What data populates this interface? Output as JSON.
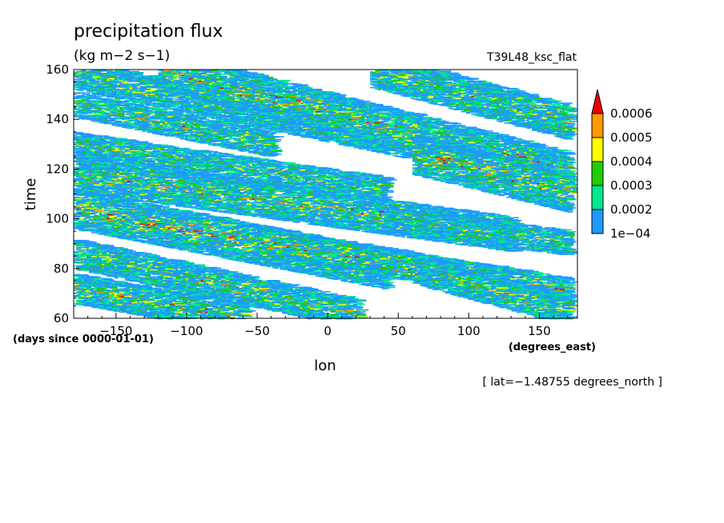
{
  "chart_data": {
    "type": "heatmap",
    "title": "precipitation flux",
    "units": "(kg m−2 s−1)",
    "run_label": "T39L48_ksc_flat",
    "xlabel": "lon",
    "xunits": "(degrees_east)",
    "ylabel": "time",
    "yunits": "(days since 0000-01-01)",
    "note": "[ lat=−1.48755 degrees_north ]",
    "xlim": [
      -180,
      177
    ],
    "ylim": [
      60,
      160
    ],
    "x_ticks": [
      -150,
      -100,
      -50,
      0,
      50,
      100,
      150
    ],
    "x_tick_labels": [
      "−150",
      "−100",
      "−50",
      "0",
      "50",
      "100",
      "150"
    ],
    "y_ticks": [
      60,
      80,
      100,
      120,
      140,
      160
    ],
    "y_tick_labels": [
      "60",
      "80",
      "100",
      "120",
      "140",
      "160"
    ],
    "grid": false,
    "legend_position": "right",
    "levels": [
      0.0001,
      0.0002,
      0.0003,
      0.0004,
      0.0005,
      0.0006
    ],
    "level_labels": [
      "1e−04",
      "0.0002",
      "0.0003",
      "0.0004",
      "0.0005",
      "0.0006"
    ],
    "colors": [
      "#1e9bff",
      "#00e890",
      "#22cc00",
      "#ffff00",
      "#ff9900",
      "#ee0000"
    ],
    "bands": [
      {
        "lon_start": -180,
        "time_start": 158,
        "lon_end": 60,
        "time_end": 130,
        "width_days": 6,
        "intensity": 0.6
      },
      {
        "lon_start": -120,
        "time_start": 160,
        "lon_end": 177,
        "time_end": 118,
        "width_days": 8,
        "intensity": 0.8
      },
      {
        "lon_start": 30,
        "time_start": 160,
        "lon_end": 177,
        "time_end": 138,
        "width_days": 7,
        "intensity": 0.7
      },
      {
        "lon_start": -180,
        "time_start": 146,
        "lon_end": -40,
        "time_end": 130,
        "width_days": 5,
        "intensity": 0.7
      },
      {
        "lon_start": -180,
        "time_start": 130,
        "lon_end": 40,
        "time_end": 112,
        "width_days": 5,
        "intensity": 0.6
      },
      {
        "lon_start": -180,
        "time_start": 118,
        "lon_end": 130,
        "time_end": 94,
        "width_days": 7,
        "intensity": 0.8
      },
      {
        "lon_start": 60,
        "time_start": 126,
        "lon_end": 177,
        "time_end": 110,
        "width_days": 8,
        "intensity": 0.9
      },
      {
        "lon_start": -180,
        "time_start": 104,
        "lon_end": 40,
        "time_end": 80,
        "width_days": 8,
        "intensity": 0.9
      },
      {
        "lon_start": 40,
        "time_start": 100,
        "lon_end": 177,
        "time_end": 90,
        "width_days": 5,
        "intensity": 0.6
      },
      {
        "lon_start": -180,
        "time_start": 86,
        "lon_end": 20,
        "time_end": 62,
        "width_days": 6,
        "intensity": 0.7
      },
      {
        "lon_start": -40,
        "time_start": 90,
        "lon_end": 177,
        "time_end": 70,
        "width_days": 6,
        "intensity": 0.8
      },
      {
        "lon_start": -180,
        "time_start": 72,
        "lon_end": -60,
        "time_end": 60,
        "width_days": 6,
        "intensity": 0.8
      },
      {
        "lon_start": 60,
        "time_start": 80,
        "lon_end": 177,
        "time_end": 62,
        "width_days": 6,
        "intensity": 0.7
      }
    ]
  }
}
